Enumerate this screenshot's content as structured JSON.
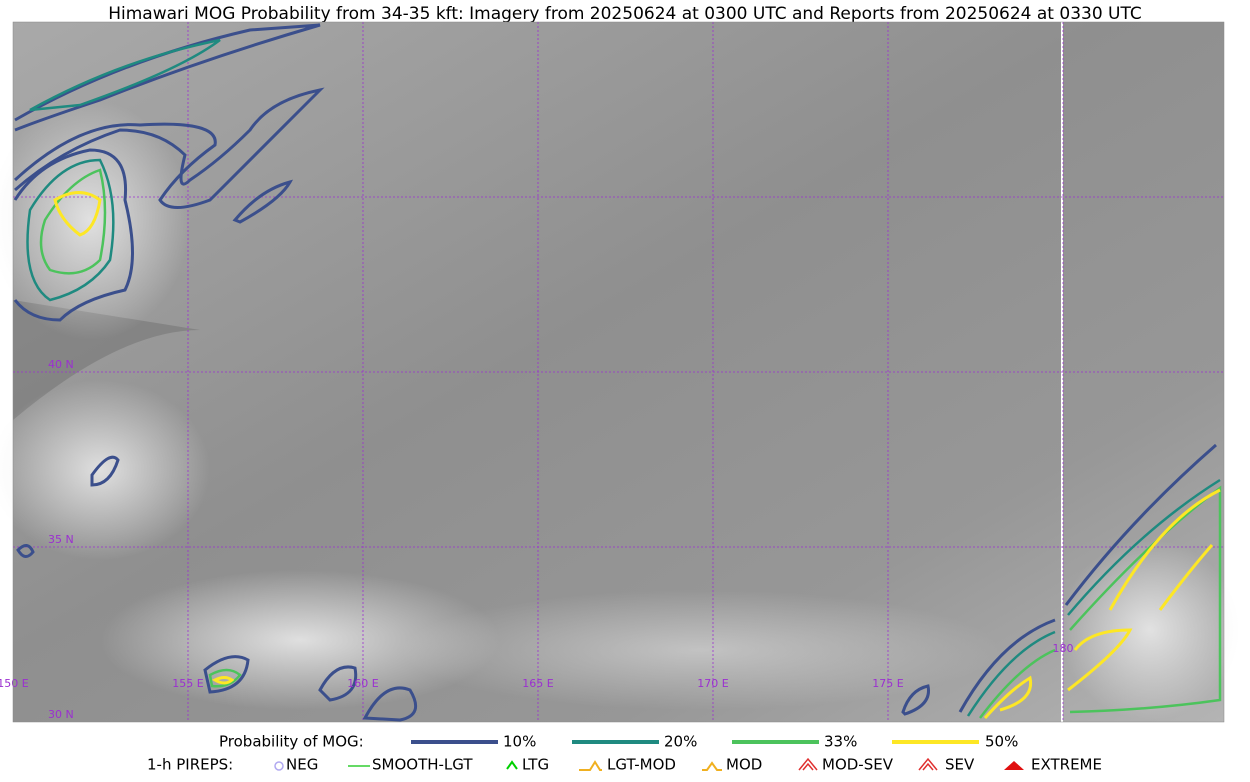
{
  "title": "Himawari MOG Probability from 34-35 kft: Imagery from 20250624 at 0300 UTC and Reports from 20250624 at 0330 UTC",
  "map": {
    "lat_labels": [
      "40 N",
      "35 N",
      "30 N"
    ],
    "lon_labels": [
      "150 E",
      "155 E",
      "160 E",
      "165 E",
      "170 E",
      "175 E",
      "180"
    ]
  },
  "legend": {
    "probability_title": "Probability of MOG:",
    "probability_levels": [
      "10%",
      "20%",
      "33%",
      "50%"
    ],
    "pireps_title": "1-h PIREPS:",
    "pireps": [
      "NEG",
      "SMOOTH-LGT",
      "LTG",
      "LGT-MOD",
      "MOD",
      "MOD-SEV",
      "SEV",
      "EXTREME"
    ]
  }
}
